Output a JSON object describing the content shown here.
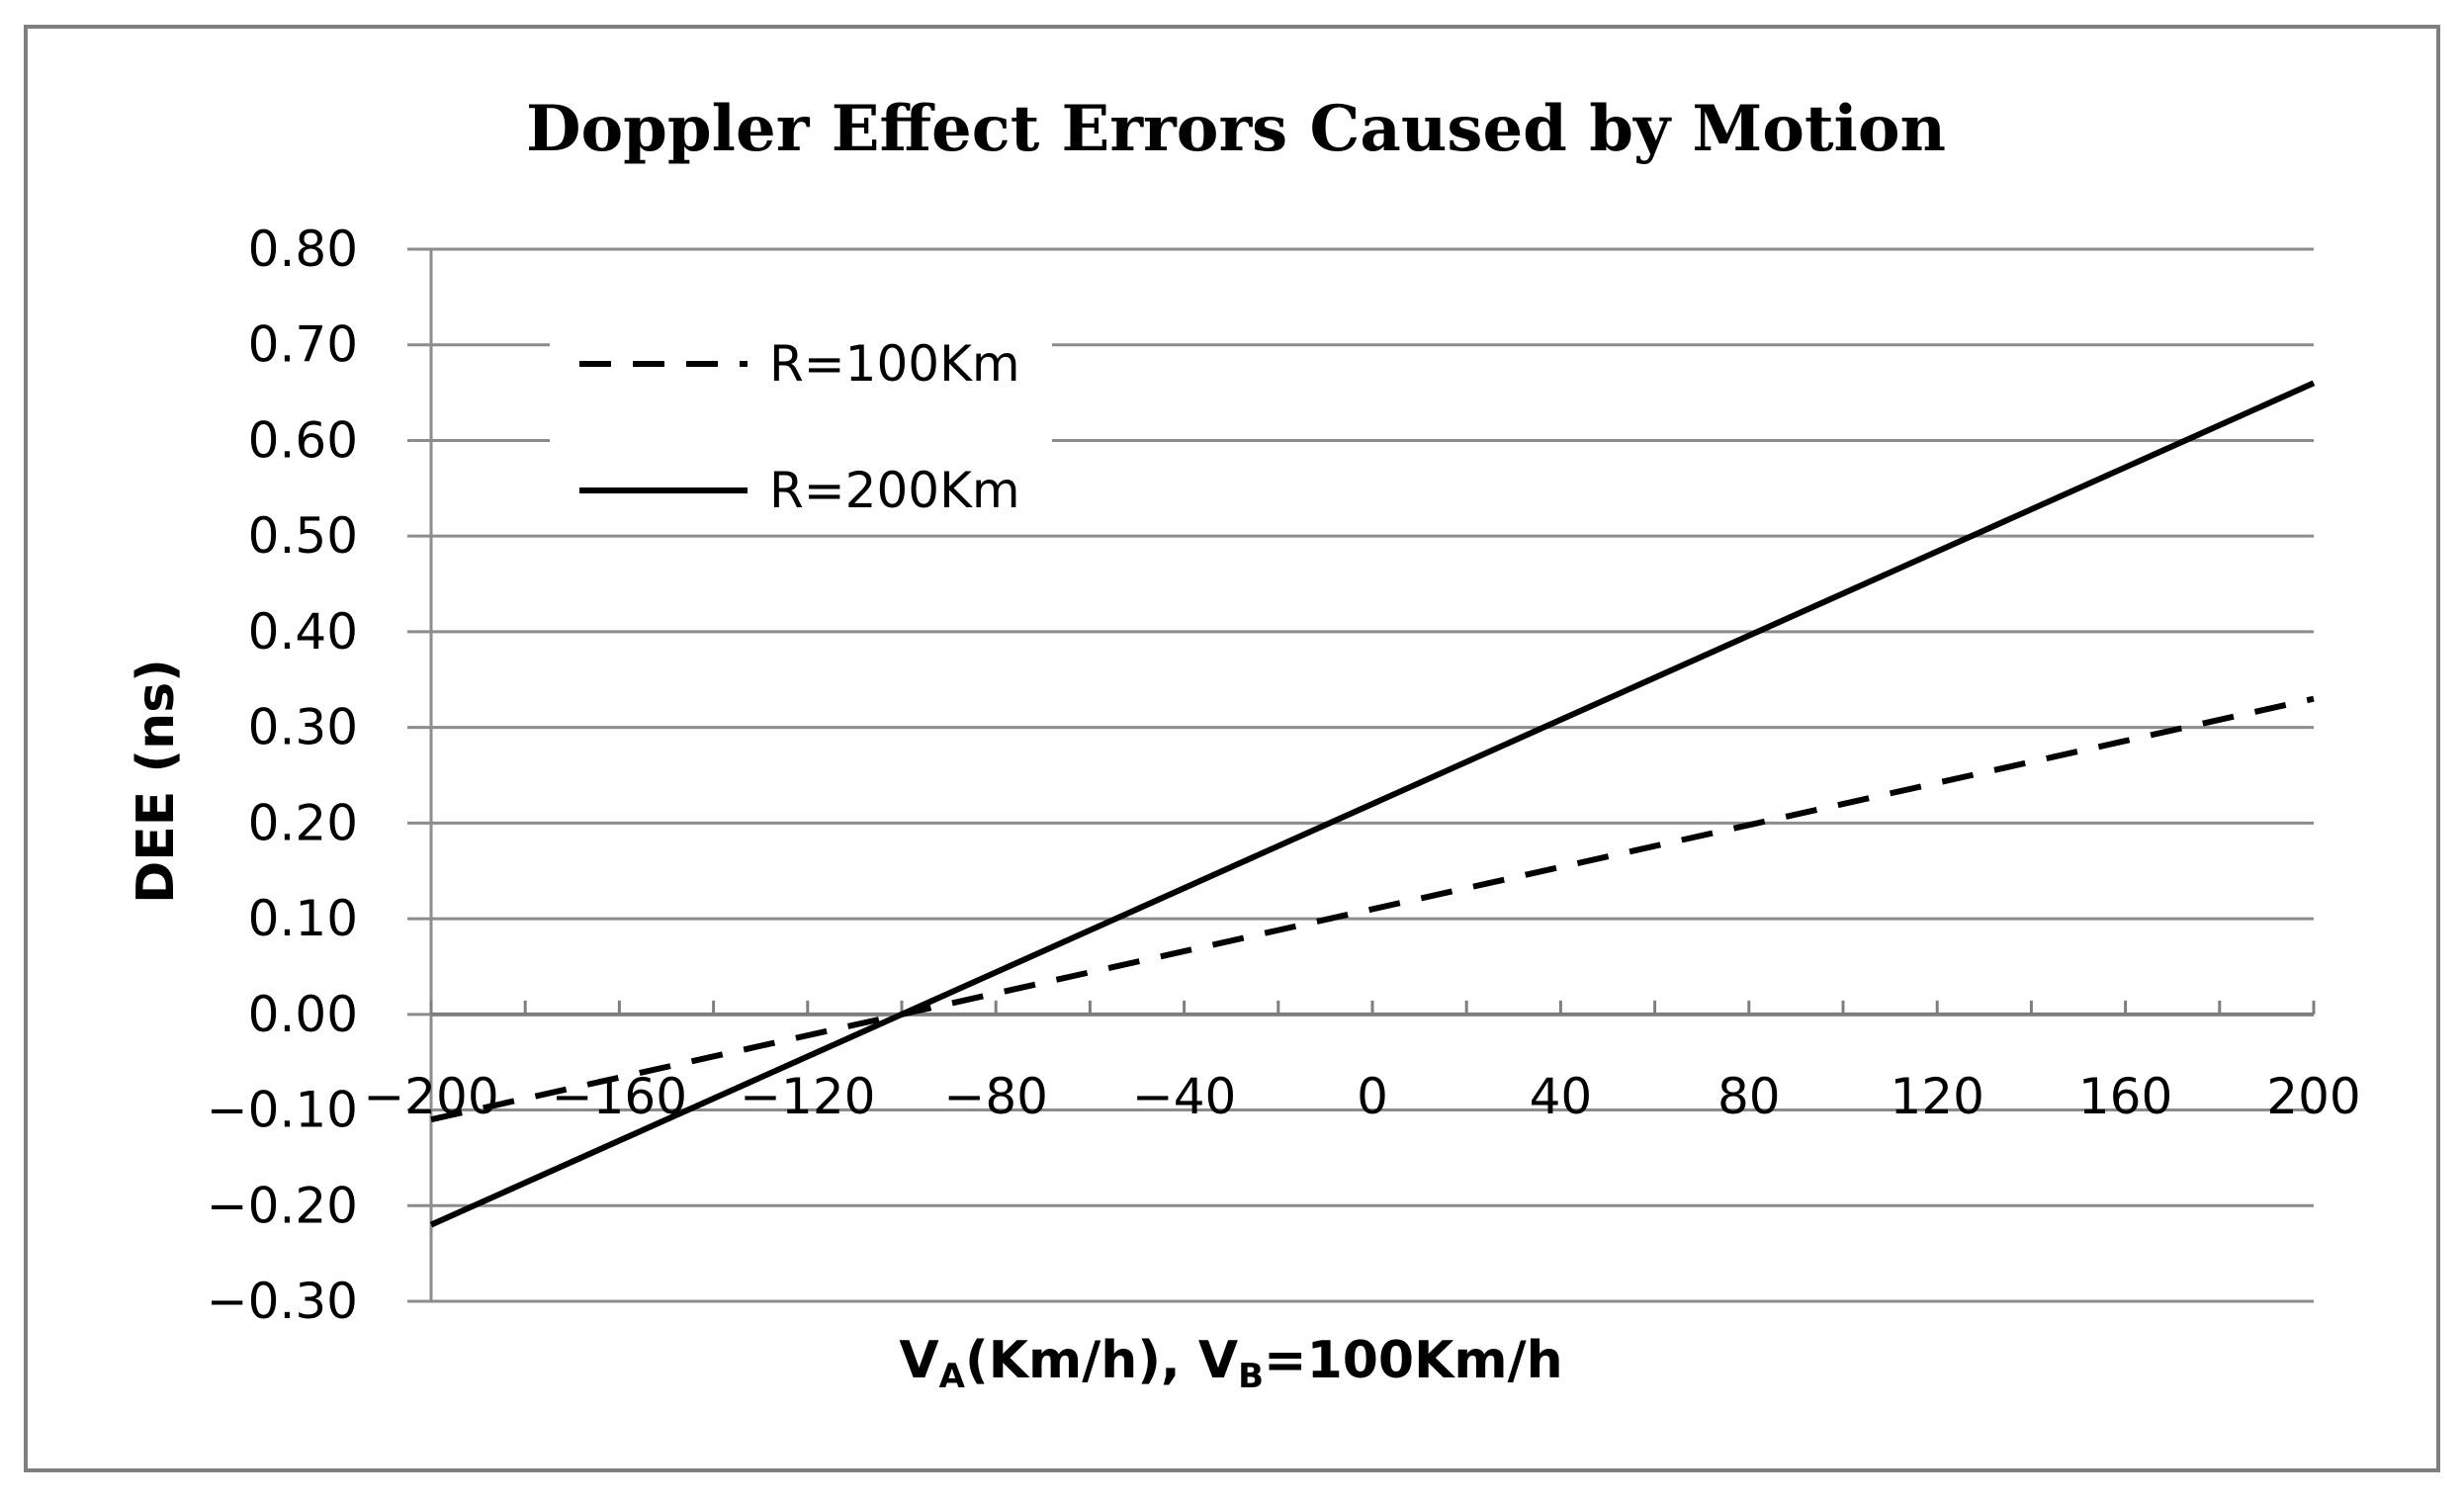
{
  "chart_data": {
    "type": "line",
    "title": "Doppler Effect Errors Caused by Motion",
    "ylabel": "DEE (ns)",
    "xlabel": {
      "v": "V",
      "sub_a": "A",
      "mid": "(Km/h), V",
      "sub_b": "B",
      "tail": "=100Km/h"
    },
    "x_ticks": [
      -200,
      -160,
      -120,
      -80,
      -40,
      0,
      40,
      80,
      120,
      160,
      200
    ],
    "x_tick_labels": [
      "−200",
      "−160",
      "−120",
      "−80",
      "−40",
      "0",
      "40",
      "80",
      "120",
      "160",
      "200"
    ],
    "y_ticks": [
      0.8,
      0.7,
      0.6,
      0.5,
      0.4,
      0.3,
      0.2,
      0.1,
      0.0,
      -0.1,
      -0.2,
      -0.3
    ],
    "y_tick_labels": [
      "0.80",
      "0.70",
      "0.60",
      "0.50",
      "0.40",
      "0.30",
      "0.20",
      "0.10",
      "0.00",
      "−0.10",
      "−0.20",
      "−0.30"
    ],
    "xlim": [
      -200,
      200
    ],
    "ylim": [
      -0.3,
      0.8
    ],
    "grid": true,
    "legend_position": "top-left",
    "series": [
      {
        "name": "R=100Km",
        "style": "dashed",
        "x": [
          -200,
          200
        ],
        "y": [
          -0.11,
          0.33
        ]
      },
      {
        "name": "R=200Km",
        "style": "solid",
        "x": [
          -200,
          200
        ],
        "y": [
          -0.22,
          0.66
        ]
      }
    ],
    "colors": {
      "series": "#000000",
      "grid": "#8c8c8c",
      "frame": "#7f7f7f"
    }
  }
}
